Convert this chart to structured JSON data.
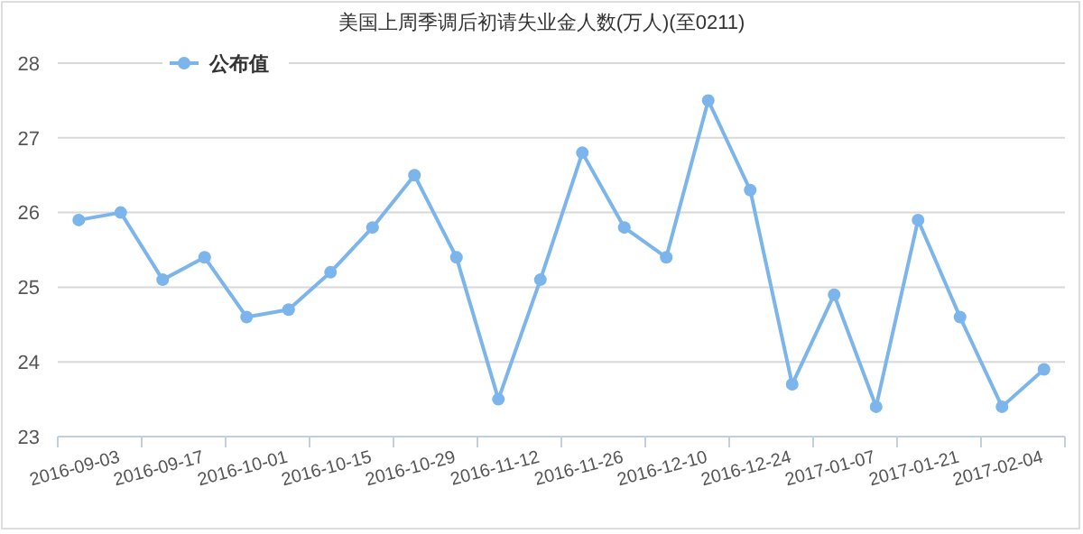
{
  "chart_data": {
    "type": "line",
    "title": "美国上周季调后初请失业金人数(万人)(至0211)",
    "categories": [
      "2016-09-03",
      null,
      "2016-09-17",
      null,
      "2016-10-01",
      null,
      "2016-10-15",
      null,
      "2016-10-29",
      null,
      "2016-11-12",
      null,
      "2016-11-26",
      null,
      "2016-12-10",
      null,
      "2016-12-24",
      null,
      "2017-01-07",
      null,
      "2017-01-21",
      null,
      "2017-02-04",
      null
    ],
    "series": [
      {
        "name": "公布值",
        "color": "#7cb5ec",
        "values": [
          25.9,
          26.0,
          25.1,
          25.4,
          24.6,
          24.7,
          25.2,
          25.8,
          26.5,
          25.4,
          23.5,
          25.1,
          26.8,
          25.8,
          25.4,
          27.5,
          26.3,
          23.7,
          24.9,
          23.4,
          25.9,
          24.6,
          23.4,
          23.9
        ]
      }
    ],
    "ylim": [
      23,
      28
    ],
    "yticks": [
      23,
      24,
      25,
      26,
      27,
      28
    ],
    "grid": "y",
    "legend": "top left",
    "marker": "circle",
    "line_style": "solid"
  }
}
